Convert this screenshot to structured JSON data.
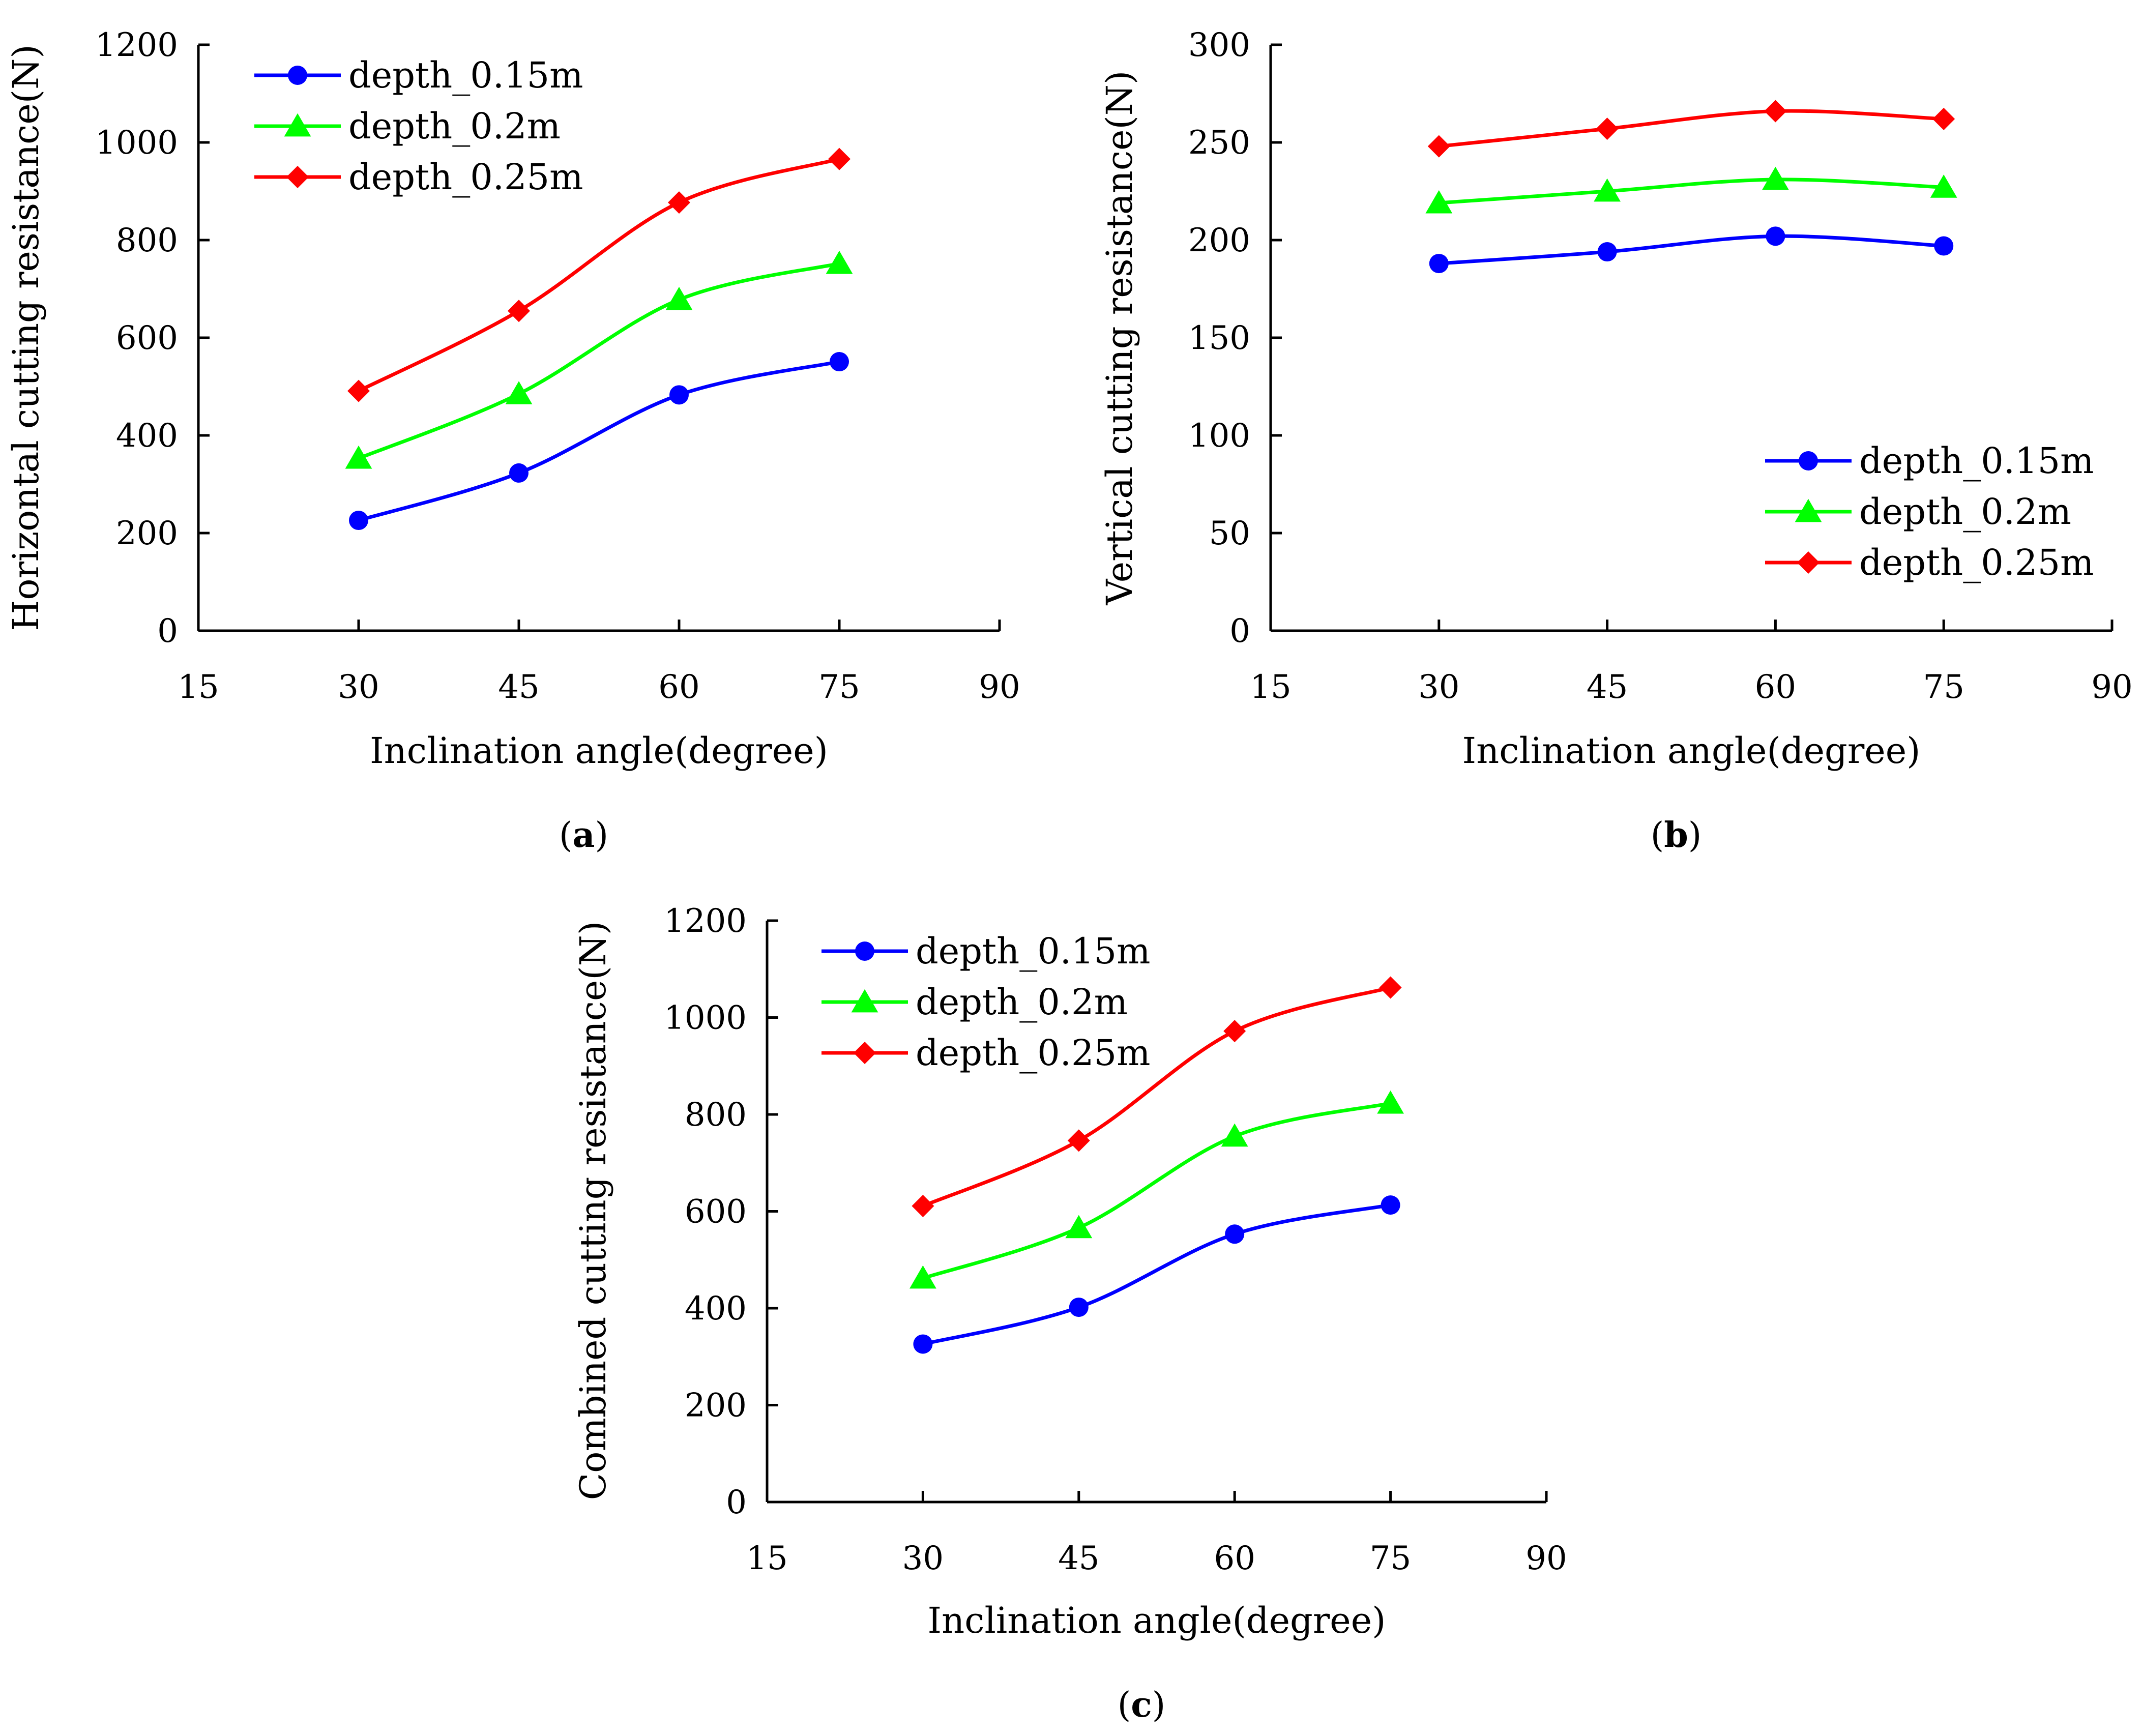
{
  "chart_data": [
    {
      "type": "line",
      "panel_label": "a",
      "xlabel": "Inclination angle(degree)",
      "ylabel": "Horizontal cutting resistance(N)",
      "xlim": [
        15,
        90
      ],
      "ylim": [
        0,
        1200
      ],
      "xticks": [
        15,
        30,
        45,
        60,
        75,
        90
      ],
      "yticks": [
        0,
        200,
        400,
        600,
        800,
        1000,
        1200
      ],
      "legend_position": "top-left",
      "x": [
        30,
        45,
        60,
        75
      ],
      "series": [
        {
          "name": "depth_0.15m",
          "color": "#0000ff",
          "marker": "circle",
          "values": [
            226,
            323,
            483,
            551
          ]
        },
        {
          "name": "depth_0.2m",
          "color": "#00ff00",
          "marker": "triangle",
          "values": [
            353,
            485,
            678,
            752
          ]
        },
        {
          "name": "depth_0.25m",
          "color": "#ff0000",
          "marker": "diamond",
          "values": [
            491,
            655,
            877,
            966
          ]
        }
      ]
    },
    {
      "type": "line",
      "panel_label": "b",
      "xlabel": "Inclination angle(degree)",
      "ylabel": "Vertical cutting resistance(N)",
      "xlim": [
        15,
        90
      ],
      "ylim": [
        0,
        300
      ],
      "xticks": [
        15,
        30,
        45,
        60,
        75,
        90
      ],
      "yticks": [
        0,
        50,
        100,
        150,
        200,
        250,
        300
      ],
      "legend_position": "bottom-right",
      "x": [
        30,
        45,
        60,
        75
      ],
      "series": [
        {
          "name": "depth_0.15m",
          "color": "#0000ff",
          "marker": "circle",
          "values": [
            188,
            194,
            202,
            197
          ]
        },
        {
          "name": "depth_0.2m",
          "color": "#00ff00",
          "marker": "triangle",
          "values": [
            219,
            225,
            231,
            227
          ]
        },
        {
          "name": "depth_0.25m",
          "color": "#ff0000",
          "marker": "diamond",
          "values": [
            248,
            257,
            266,
            262
          ]
        }
      ]
    },
    {
      "type": "line",
      "panel_label": "c",
      "xlabel": "Inclination angle(degree)",
      "ylabel": "Combined cutting resistance(N)",
      "xlim": [
        15,
        90
      ],
      "ylim": [
        0,
        1200
      ],
      "xticks": [
        15,
        30,
        45,
        60,
        75,
        90
      ],
      "yticks": [
        0,
        200,
        400,
        600,
        800,
        1000,
        1200
      ],
      "legend_position": "top-left",
      "x": [
        30,
        45,
        60,
        75
      ],
      "series": [
        {
          "name": "depth_0.15m",
          "color": "#0000ff",
          "marker": "circle",
          "values": [
            326,
            402,
            553,
            613
          ]
        },
        {
          "name": "depth_0.2m",
          "color": "#00ff00",
          "marker": "triangle",
          "values": [
            462,
            566,
            755,
            823
          ]
        },
        {
          "name": "depth_0.25m",
          "color": "#ff0000",
          "marker": "diamond",
          "values": [
            611,
            746,
            972,
            1062
          ]
        }
      ]
    }
  ]
}
